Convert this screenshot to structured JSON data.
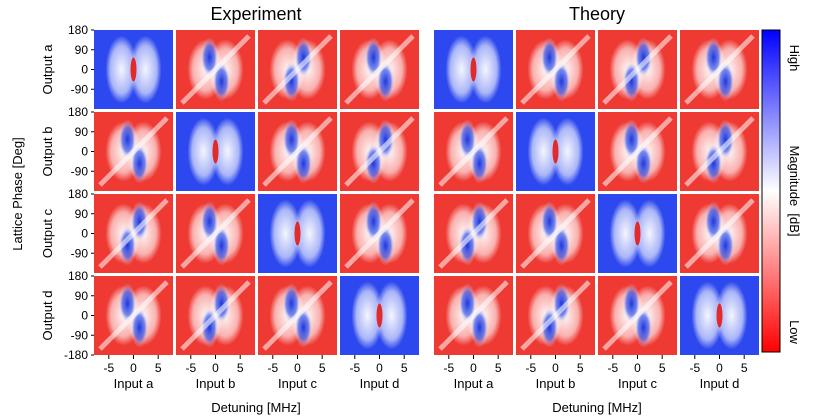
{
  "chart_data": {
    "type": "heatmap",
    "panels": [
      {
        "title": "Experiment"
      },
      {
        "title": "Theory"
      }
    ],
    "row_labels": [
      "Output a",
      "Output b",
      "Output c",
      "Output d"
    ],
    "col_labels": [
      "Input a",
      "Input b",
      "Input c",
      "Input d"
    ],
    "ylabel": "Lattice Phase [Deg]",
    "xlabel": "Detuning [MHz]",
    "y_ticks": [
      "180",
      "90",
      "0",
      "-90",
      "-180"
    ],
    "x_ticks": [
      "-5",
      "0",
      "5"
    ],
    "x_range": [
      -8,
      8
    ],
    "y_range": [
      -180,
      180
    ],
    "colorbar": {
      "label": "Magnitude  [dB]",
      "high": "High",
      "low": "Low",
      "colors": [
        "#0000ff",
        "#ffffff",
        "#ff0000"
      ]
    },
    "cell_background": [
      [
        "blue",
        "red",
        "red",
        "red"
      ],
      [
        "red",
        "blue",
        "red",
        "red"
      ],
      [
        "red",
        "red",
        "blue",
        "red"
      ],
      [
        "red",
        "red",
        "red",
        "blue"
      ]
    ],
    "grid": false
  }
}
